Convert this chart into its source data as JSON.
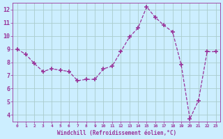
{
  "x": [
    0,
    1,
    2,
    3,
    4,
    5,
    6,
    7,
    8,
    9,
    10,
    11,
    12,
    13,
    14,
    15,
    16,
    17,
    18,
    19,
    20,
    21,
    22,
    23
  ],
  "y": [
    9.0,
    8.6,
    7.9,
    7.3,
    7.5,
    7.4,
    7.3,
    6.6,
    6.7,
    6.7,
    7.5,
    7.7,
    8.8,
    9.9,
    10.6,
    12.2,
    11.4,
    10.8,
    10.3,
    7.8,
    3.7,
    5.1,
    8.8,
    8.8
  ],
  "line_color": "#993399",
  "marker": "P",
  "marker_size": 3,
  "bg_color": "#cceeff",
  "grid_color": "#aacccc",
  "xlabel": "Windchill (Refroidissement éolien,°C)",
  "xlabel_color": "#993399",
  "tick_color": "#993399",
  "xlim": [
    -0.5,
    23.5
  ],
  "ylim": [
    3.5,
    12.5
  ],
  "yticks": [
    4,
    5,
    6,
    7,
    8,
    9,
    10,
    11,
    12
  ],
  "xticks": [
    0,
    1,
    2,
    3,
    4,
    5,
    6,
    7,
    8,
    9,
    10,
    11,
    12,
    13,
    14,
    15,
    16,
    17,
    18,
    19,
    20,
    21,
    22,
    23
  ]
}
